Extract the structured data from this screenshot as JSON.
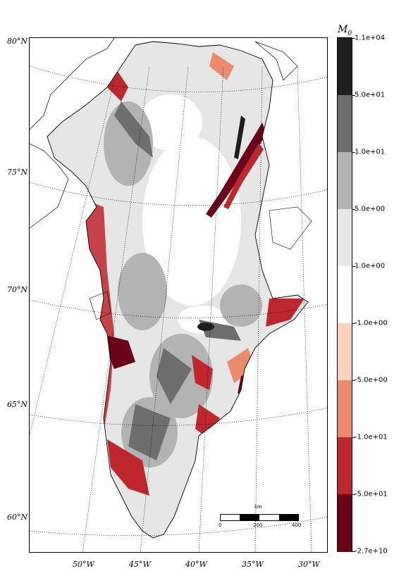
{
  "map": {
    "region": "Greenland",
    "lat_labels": [
      "80°N",
      "75°N",
      "70°N",
      "65°N",
      "60°N"
    ],
    "lon_labels": [
      "50°W",
      "45°W",
      "40°W",
      "35°W",
      "30°W"
    ],
    "graticule": "dotted"
  },
  "colorbar": {
    "title": "M",
    "title_sub": "0",
    "ticks": [
      "1.1e+04",
      "5.0e+01",
      "1.0e+01",
      "5.0e+00",
      "1.0e+00",
      "-1.0e+00",
      "-5.0e+00",
      "-1.0e+01",
      "-5.0e+01",
      "-2.7e+10"
    ],
    "colors": [
      "#1f1f1f",
      "#6e6e6e",
      "#b3b3b3",
      "#e6e6e6",
      "#ffffff",
      "#fcd2bd",
      "#ec8a6c",
      "#c0272c",
      "#6b0419"
    ]
  },
  "scalebar": {
    "unit": "km",
    "ticks": [
      "0",
      "200",
      "400"
    ]
  }
}
